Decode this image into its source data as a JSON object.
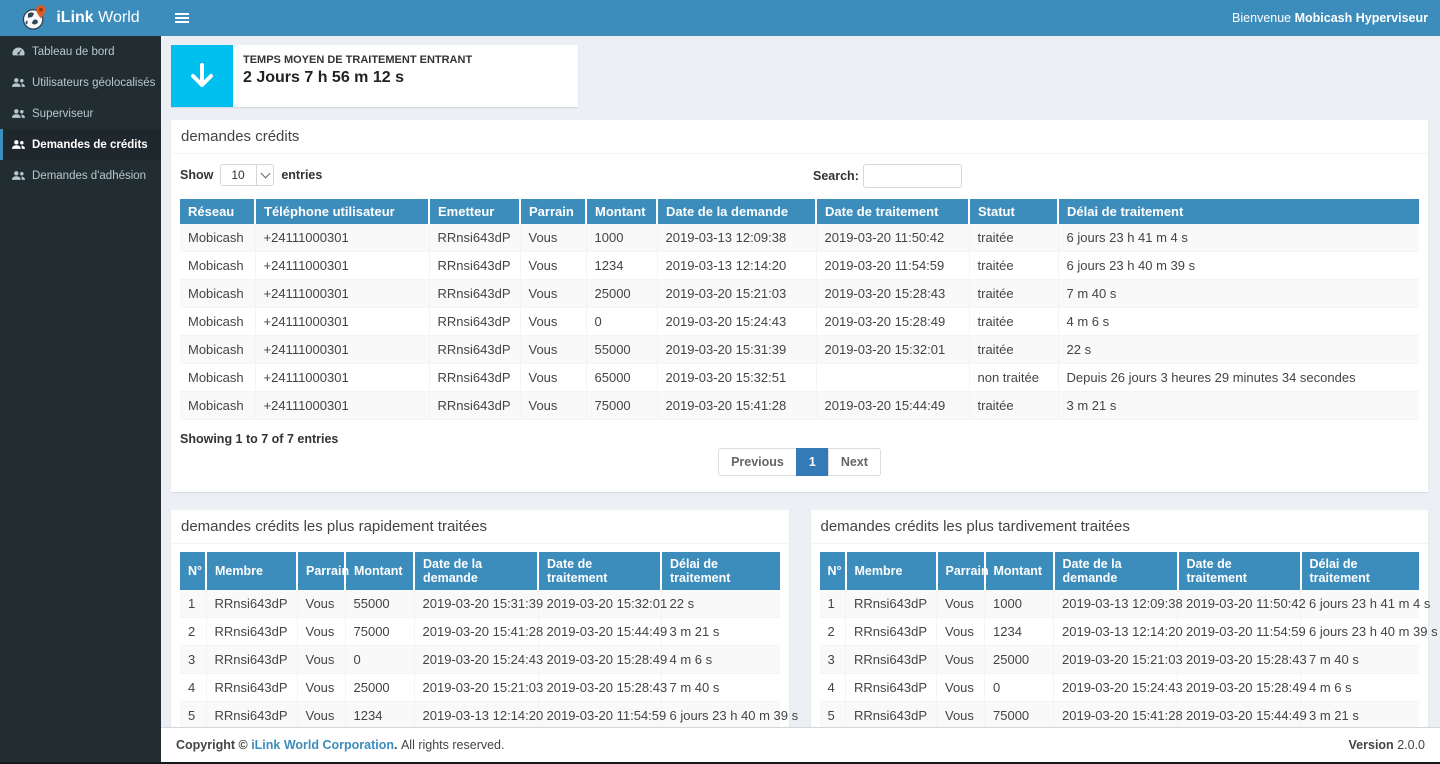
{
  "colors": {
    "accent": "#3c8dbc",
    "sidebar_bg": "#222d32",
    "sidebar_active_bg": "#1e282c",
    "stat_icon_bg": "#00c0ef",
    "pagination_active": "#337ab7",
    "content_bg": "#ecf0f5"
  },
  "brand": {
    "bold": "iLink",
    "light": " World",
    "logo_icon": "globe-pin-icon"
  },
  "navbar": {
    "menu_icon": "hamburger-icon",
    "welcome_prefix": "Bienvenue ",
    "welcome_user": "Mobicash Hyperviseur"
  },
  "sidebar": {
    "items": [
      {
        "label": "Tableau de bord",
        "icon": "dashboard-icon",
        "active": false
      },
      {
        "label": "Utilisateurs géolocalisés",
        "icon": "users-icon",
        "active": false
      },
      {
        "label": "Superviseur",
        "icon": "users-icon",
        "active": false
      },
      {
        "label": "Demandes de crédits",
        "icon": "users-icon",
        "active": true
      },
      {
        "label": "Demandes d'adhésion",
        "icon": "users-icon",
        "active": false
      }
    ]
  },
  "stat_card": {
    "icon": "arrow-down-icon",
    "label": "TEMPS MOYEN DE TRAITEMENT ENTRANT",
    "value": "2 Jours 7 h 56 m 12 s"
  },
  "main_table": {
    "title": "demandes crédits",
    "show_label": "Show",
    "page_length": "10",
    "entries_label": "entries",
    "search_label": "Search:",
    "search_value": "",
    "columns": [
      "Réseau",
      "Téléphone utilisateur",
      "Emetteur",
      "Parrain",
      "Montant",
      "Date de la demande",
      "Date de traitement",
      "Statut",
      "Délai de traitement"
    ],
    "rows": [
      [
        "Mobicash",
        "+24111000301",
        "RRnsi643dP",
        "Vous",
        "1000",
        "2019-03-13 12:09:38",
        "2019-03-20 11:50:42",
        "traitée",
        "6 jours 23 h 41 m 4 s"
      ],
      [
        "Mobicash",
        "+24111000301",
        "RRnsi643dP",
        "Vous",
        "1234",
        "2019-03-13 12:14:20",
        "2019-03-20 11:54:59",
        "traitée",
        "6 jours 23 h 40 m 39 s"
      ],
      [
        "Mobicash",
        "+24111000301",
        "RRnsi643dP",
        "Vous",
        "25000",
        "2019-03-20 15:21:03",
        "2019-03-20 15:28:43",
        "traitée",
        "7 m 40 s"
      ],
      [
        "Mobicash",
        "+24111000301",
        "RRnsi643dP",
        "Vous",
        "0",
        "2019-03-20 15:24:43",
        "2019-03-20 15:28:49",
        "traitée",
        "4 m 6 s"
      ],
      [
        "Mobicash",
        "+24111000301",
        "RRnsi643dP",
        "Vous",
        "55000",
        "2019-03-20 15:31:39",
        "2019-03-20 15:32:01",
        "traitée",
        "22 s"
      ],
      [
        "Mobicash",
        "+24111000301",
        "RRnsi643dP",
        "Vous",
        "65000",
        "2019-03-20 15:32:51",
        "",
        "non traitée",
        "Depuis 26 jours 3 heures 29 minutes 34 secondes"
      ],
      [
        "Mobicash",
        "+24111000301",
        "RRnsi643dP",
        "Vous",
        "75000",
        "2019-03-20 15:41:28",
        "2019-03-20 15:44:49",
        "traitée",
        "3 m 21 s"
      ]
    ],
    "info": "Showing 1 to 7 of 7 entries",
    "pagination": {
      "previous": "Previous",
      "page": "1",
      "next": "Next"
    }
  },
  "fast_table": {
    "title": "demandes crédits les plus rapidement traitées",
    "columns": [
      "N°",
      "Membre",
      "Parrain",
      "Montant",
      "Date de la demande",
      "Date de traitement",
      "Délai de traitement"
    ],
    "rows": [
      [
        "1",
        "RRnsi643dP",
        "Vous",
        "55000",
        "2019-03-20 15:31:39",
        "2019-03-20 15:32:01",
        "22 s"
      ],
      [
        "2",
        "RRnsi643dP",
        "Vous",
        "75000",
        "2019-03-20 15:41:28",
        "2019-03-20 15:44:49",
        "3 m 21 s"
      ],
      [
        "3",
        "RRnsi643dP",
        "Vous",
        "0",
        "2019-03-20 15:24:43",
        "2019-03-20 15:28:49",
        "4 m 6 s"
      ],
      [
        "4",
        "RRnsi643dP",
        "Vous",
        "25000",
        "2019-03-20 15:21:03",
        "2019-03-20 15:28:43",
        "7 m 40 s"
      ],
      [
        "5",
        "RRnsi643dP",
        "Vous",
        "1234",
        "2019-03-13 12:14:20",
        "2019-03-20 11:54:59",
        "6 jours 23 h 40 m 39 s"
      ]
    ]
  },
  "slow_table": {
    "title": "demandes crédits les plus tardivement traitées",
    "columns": [
      "N°",
      "Membre",
      "Parrain",
      "Montant",
      "Date de la demande",
      "Date de traitement",
      "Délai de traitement"
    ],
    "rows": [
      [
        "1",
        "RRnsi643dP",
        "Vous",
        "1000",
        "2019-03-13 12:09:38",
        "2019-03-20 11:50:42",
        "6 jours 23 h 41 m 4 s"
      ],
      [
        "2",
        "RRnsi643dP",
        "Vous",
        "1234",
        "2019-03-13 12:14:20",
        "2019-03-20 11:54:59",
        "6 jours 23 h 40 m 39 s"
      ],
      [
        "3",
        "RRnsi643dP",
        "Vous",
        "25000",
        "2019-03-20 15:21:03",
        "2019-03-20 15:28:43",
        "7 m 40 s"
      ],
      [
        "4",
        "RRnsi643dP",
        "Vous",
        "0",
        "2019-03-20 15:24:43",
        "2019-03-20 15:28:49",
        "4 m 6 s"
      ],
      [
        "5",
        "RRnsi643dP",
        "Vous",
        "75000",
        "2019-03-20 15:41:28",
        "2019-03-20 15:44:49",
        "3 m 21 s"
      ]
    ]
  },
  "footer": {
    "copyright_prefix": "Copyright © ",
    "company": "iLink World Corporation",
    "copyright_suffix": ". ",
    "rights_text": "All rights reserved.",
    "version_label": "Version",
    "version": "2.0.0"
  }
}
